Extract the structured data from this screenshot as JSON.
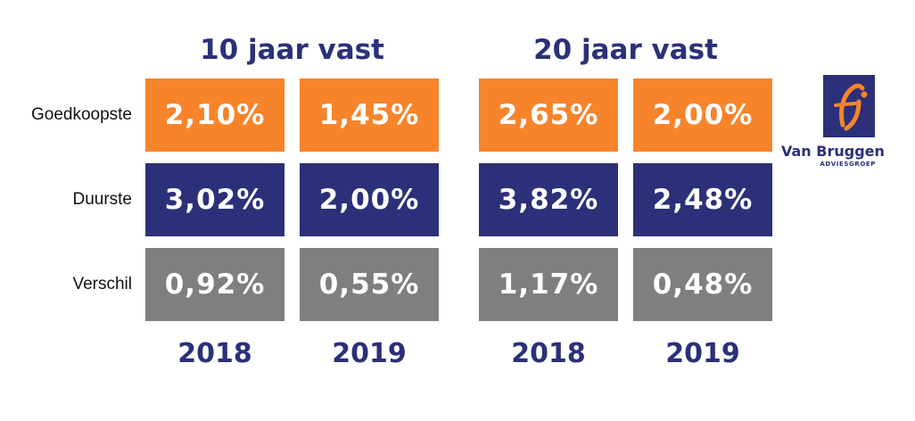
{
  "chart_data": {
    "type": "table",
    "groups": [
      {
        "title": "10 jaar vast",
        "years": [
          "2018",
          "2019"
        ]
      },
      {
        "title": "20 jaar vast",
        "years": [
          "2018",
          "2019"
        ]
      }
    ],
    "rows": [
      {
        "label": "Goedkoopste",
        "color": "#f7842b",
        "values": [
          "2,10%",
          "1,45%",
          "2,65%",
          "2,00%"
        ]
      },
      {
        "label": "Duurste",
        "color": "#2b3078",
        "values": [
          "3,02%",
          "2,00%",
          "3,82%",
          "2,48%"
        ]
      },
      {
        "label": "Verschil",
        "color": "#7f7f7f",
        "values": [
          "0,92%",
          "0,55%",
          "1,17%",
          "0,48%"
        ]
      }
    ],
    "columns": [
      "2018",
      "2019",
      "2018",
      "2019"
    ]
  },
  "colors": {
    "title": "#2b3078",
    "orange": "#f7842b",
    "navy": "#2b3078",
    "gray": "#7f7f7f"
  },
  "logo": {
    "name": "Van Bruggen",
    "sub": "ADVIESGROEP",
    "icon": "fj-monogram-logo"
  }
}
